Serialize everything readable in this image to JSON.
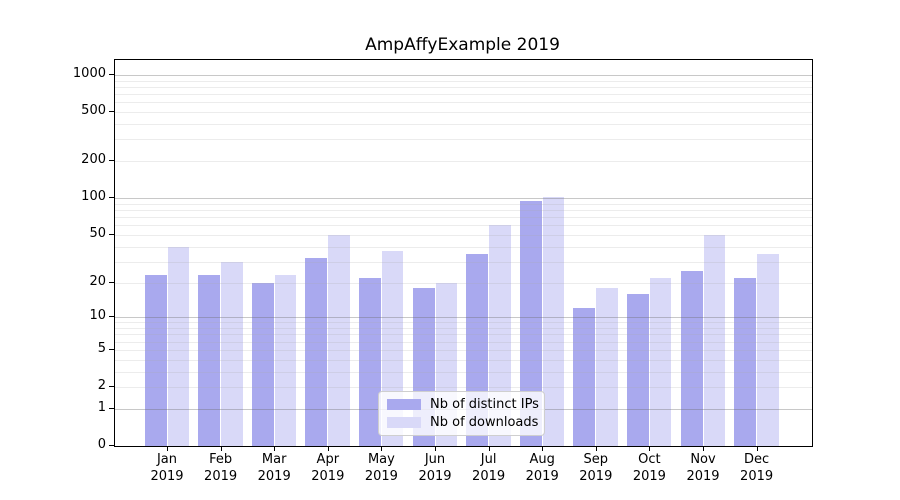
{
  "title": "AmpAffyExample 2019",
  "chart_data": {
    "type": "bar",
    "title": "AmpAffyExample 2019",
    "categories": [
      "Jan",
      "Feb",
      "Mar",
      "Apr",
      "May",
      "Jun",
      "Jul",
      "Aug",
      "Sep",
      "Oct",
      "Nov",
      "Dec"
    ],
    "x_year_label": "2019",
    "series": [
      {
        "name": "Nb of distinct IPs",
        "color": "#a9a9ee",
        "values": [
          23,
          23,
          20,
          32,
          22,
          18,
          35,
          95,
          12,
          16,
          25,
          22
        ]
      },
      {
        "name": "Nb of downloads",
        "color": "#d9d9f8",
        "values": [
          40,
          30,
          23,
          50,
          37,
          20,
          60,
          103,
          18,
          22,
          50,
          35
        ]
      }
    ],
    "y_ticks": [
      0,
      1,
      2,
      5,
      10,
      20,
      50,
      100,
      200,
      500,
      1000
    ],
    "y_minor_gridlines": [
      2,
      3,
      4,
      5,
      6,
      7,
      8,
      9,
      20,
      30,
      40,
      50,
      60,
      70,
      80,
      90,
      200,
      300,
      400,
      500,
      600,
      700,
      800,
      900
    ],
    "y_major_gridlines": [
      1,
      10,
      100,
      1000
    ],
    "y_scale": "log1p",
    "ylim": [
      0,
      1320
    ],
    "grid": "both",
    "legend_position": "lower center",
    "colors": {
      "axis": "#000000",
      "major_grid": "#c3c3c3",
      "minor_grid": "#ececec",
      "background": "#ffffff"
    }
  }
}
